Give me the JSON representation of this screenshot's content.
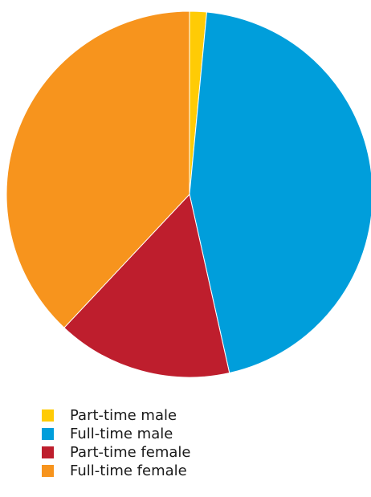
{
  "chart_data": {
    "type": "pie",
    "title": "",
    "categories": [
      "Part-time male",
      "Full-time male",
      "Part-time female",
      "Full-time female"
    ],
    "values": [
      1.5,
      45.0,
      15.5,
      38.0
    ],
    "colors": [
      "#ffcb05",
      "#009edb",
      "#be1e2d",
      "#f7941d"
    ],
    "start_angle_deg": 0,
    "direction": "clockwise",
    "legend_position": "bottom-left"
  },
  "legend": {
    "items": [
      {
        "label": "Part-time male",
        "color": "#ffcb05"
      },
      {
        "label": "Full-time male",
        "color": "#009edb"
      },
      {
        "label": "Part-time female",
        "color": "#be1e2d"
      },
      {
        "label": "Full-time female",
        "color": "#f7941d"
      }
    ]
  }
}
